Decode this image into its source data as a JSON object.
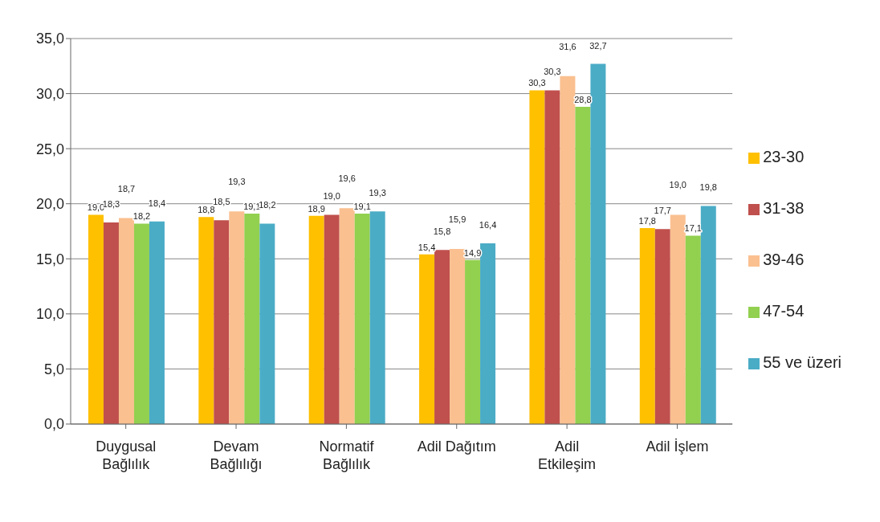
{
  "chart_data": {
    "type": "bar",
    "categories": [
      "Duygusal Bağlılık",
      "Devam Bağlılığı",
      "Normatif Bağlılık",
      "Adil Dağıtım",
      "Adil Etkileşim",
      "Adil İşlem"
    ],
    "series": [
      {
        "name": "23-30",
        "color": "#ffc000",
        "values": [
          19.0,
          18.8,
          18.9,
          15.4,
          30.3,
          17.8
        ],
        "value_labels": [
          "19,0",
          "18,8",
          "18,9",
          "15,4",
          "30,3",
          "17,8"
        ]
      },
      {
        "name": "31-38",
        "color": "#c0504d",
        "values": [
          18.3,
          18.5,
          19.0,
          15.8,
          30.3,
          17.7
        ],
        "value_labels": [
          "18,3",
          "18,5",
          "19,0",
          "15,8",
          "30,3",
          "17,7"
        ]
      },
      {
        "name": "39-46",
        "color": "#fac090",
        "values": [
          18.7,
          19.3,
          19.6,
          15.9,
          31.6,
          19.0
        ],
        "value_labels": [
          "18,7",
          "19,3",
          "19,6",
          "15,9",
          "31,6",
          "19,0"
        ]
      },
      {
        "name": "47-54",
        "color": "#92d050",
        "values": [
          18.2,
          19.1,
          19.1,
          14.9,
          28.8,
          17.1
        ],
        "value_labels": [
          "18,2",
          "19,1",
          "19,1",
          "14,9",
          "28,8",
          "17,1"
        ]
      },
      {
        "name": "55 ve üzeri",
        "color": "#4bacc6",
        "values": [
          18.4,
          18.2,
          19.3,
          16.4,
          32.7,
          19.8
        ],
        "value_labels": [
          "18,4",
          "18,2",
          "19,3",
          "16,4",
          "32,7",
          "19,8"
        ]
      }
    ],
    "ylim": [
      0,
      35
    ],
    "yticks": [
      {
        "value": 0,
        "label": "0,0"
      },
      {
        "value": 5,
        "label": "5,0"
      },
      {
        "value": 10,
        "label": "10,0"
      },
      {
        "value": 15,
        "label": "15,0"
      },
      {
        "value": 20,
        "label": "20,0"
      },
      {
        "value": 25,
        "label": "25,0"
      },
      {
        "value": 30,
        "label": "30,0"
      },
      {
        "value": 35,
        "label": "35,0"
      }
    ],
    "grid": "y",
    "legend": "right"
  }
}
